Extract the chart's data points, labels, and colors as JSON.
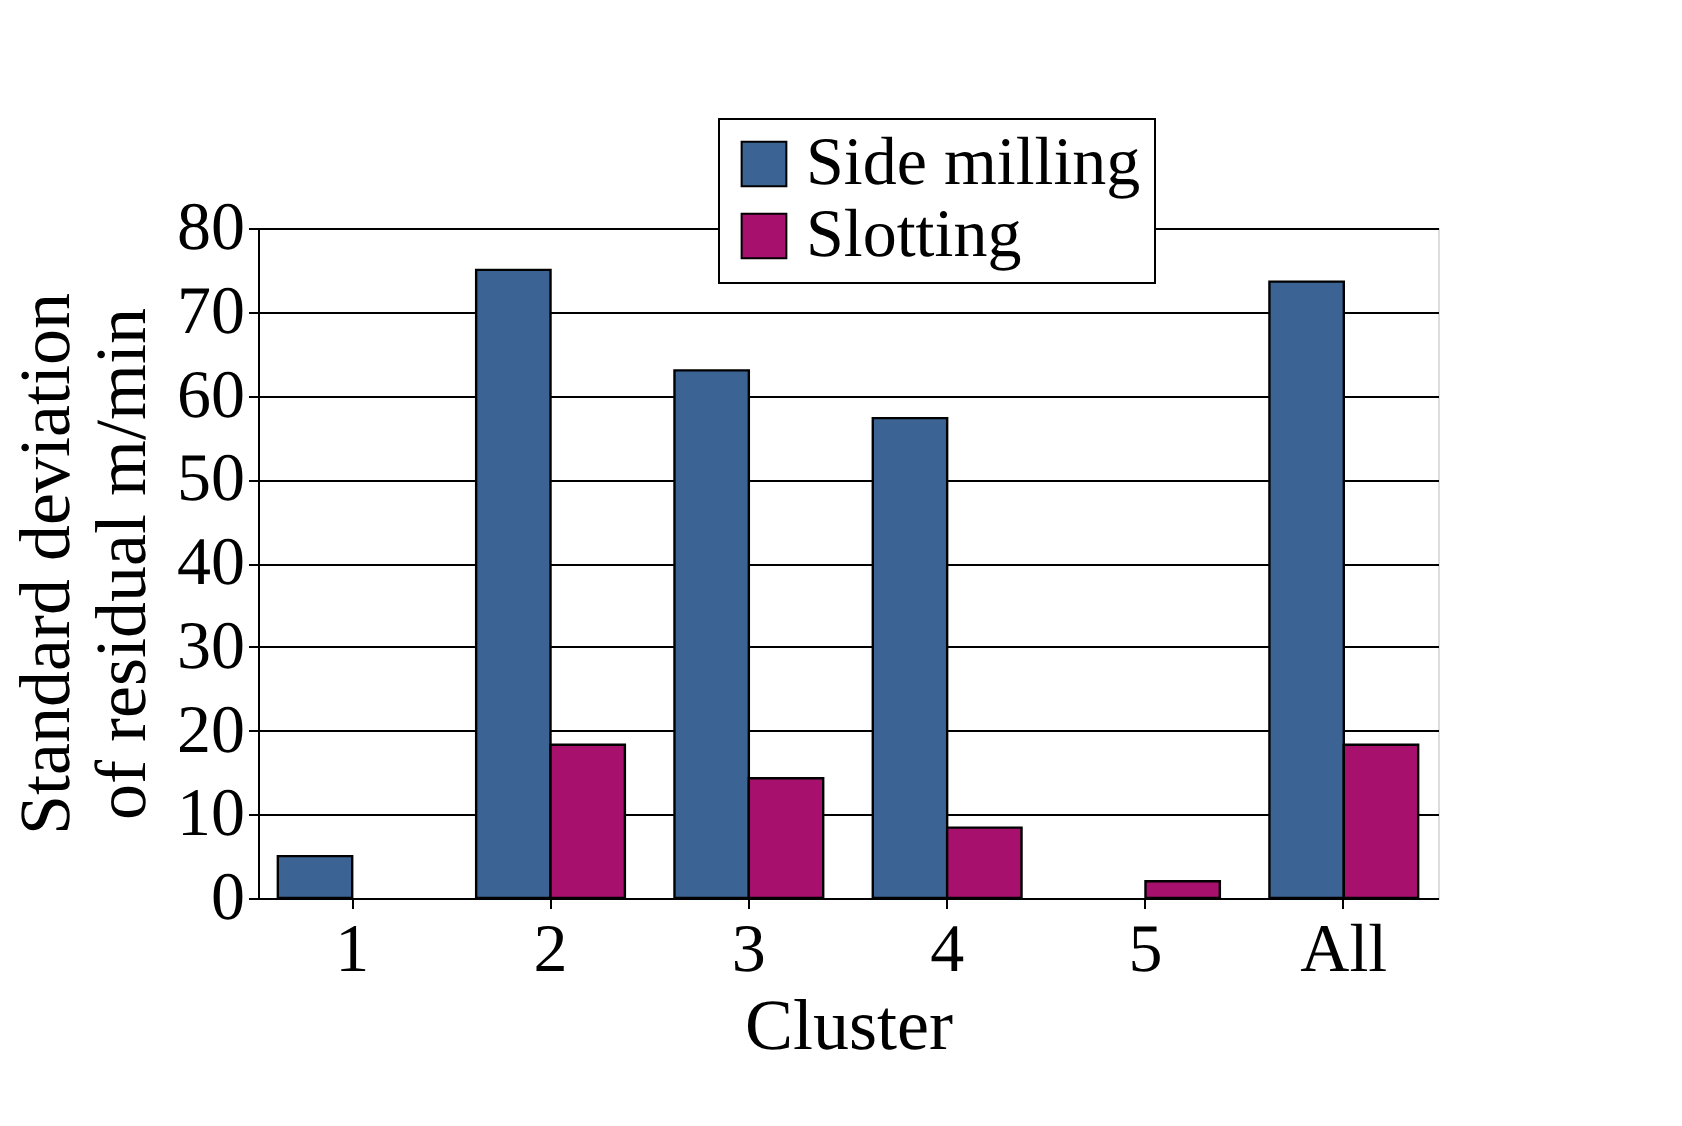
{
  "chart_data": {
    "type": "bar",
    "xlabel": "Cluster",
    "ylabel": "Standard deviation of residual m/min",
    "categories": [
      "1",
      "2",
      "3",
      "4",
      "5",
      "All"
    ],
    "series": [
      {
        "name": "Side milling",
        "color": "#3b6494",
        "values": [
          5,
          75,
          63,
          57.3,
          null,
          73.6
        ]
      },
      {
        "name": "Slotting",
        "color": "#a8106e",
        "values": [
          null,
          18.3,
          14.3,
          8.4,
          2,
          18.3
        ]
      }
    ],
    "ylim": [
      0,
      80
    ],
    "yticks": [
      0,
      10,
      20,
      30,
      40,
      50,
      60,
      70,
      80
    ],
    "grid": "y",
    "legend": "top right"
  }
}
